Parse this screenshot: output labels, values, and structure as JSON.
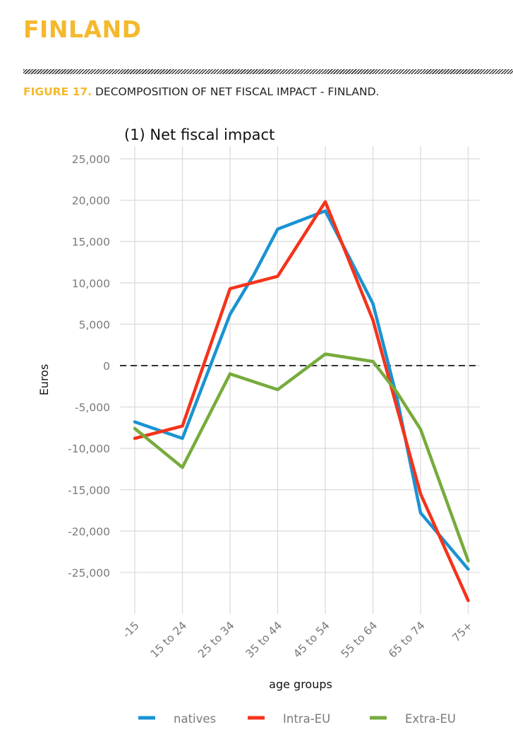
{
  "page": {
    "country_title": "FINLAND",
    "figure_label": "FIGURE 17.",
    "figure_caption": "DECOMPOSITION OF NET FISCAL IMPACT - FINLAND."
  },
  "colors": {
    "accent": "#f5b92e",
    "natives": "#1a93d3",
    "intra_eu": "#f5331b",
    "extra_eu": "#77ab3c"
  },
  "chart_data": {
    "type": "line",
    "title": "(1) Net fiscal impact",
    "xlabel": "age groups",
    "ylabel": "Euros",
    "categories": [
      "-15",
      "15 to 24",
      "25 to 34",
      "35 to 44",
      "45 to 54",
      "55 to 64",
      "65 to 74",
      "75+"
    ],
    "ylim": [
      -30000,
      25500
    ],
    "yticks": [
      25000,
      20000,
      15000,
      10000,
      5000,
      0,
      -5000,
      -10000,
      -15000,
      -20000,
      -25000
    ],
    "ytick_labels": [
      "25,000",
      "20,000",
      "15,000",
      "10,000",
      "5,000",
      "0",
      "-5,000",
      "-10,000",
      "-15,000",
      "-20,000",
      "-25,000"
    ],
    "grid": true,
    "zero_line": "dashed",
    "legend_position": "bottom",
    "series": [
      {
        "name": "natives",
        "color": "#1a93d3",
        "points": [
          [
            0,
            -6800
          ],
          [
            1,
            -8800
          ],
          [
            2,
            6200
          ],
          [
            2.5,
            11000
          ],
          [
            3,
            16500
          ],
          [
            4,
            18700
          ],
          [
            5,
            7500
          ],
          [
            5.5,
            -3800
          ],
          [
            6,
            -17800
          ],
          [
            7,
            -24600
          ]
        ]
      },
      {
        "name": "Intra-EU",
        "color": "#f5331b",
        "points": [
          [
            0,
            -8800
          ],
          [
            1,
            -7300
          ],
          [
            2,
            9300
          ],
          [
            3,
            10800
          ],
          [
            4,
            19800
          ],
          [
            5,
            5500
          ],
          [
            6,
            -15500
          ],
          [
            7,
            -28400
          ]
        ]
      },
      {
        "name": "Extra-EU",
        "color": "#77ab3c",
        "points": [
          [
            0,
            -7600
          ],
          [
            1,
            -12300
          ],
          [
            2,
            -1000
          ],
          [
            3,
            -2900
          ],
          [
            4,
            1400
          ],
          [
            5,
            500
          ],
          [
            5.5,
            -3200
          ],
          [
            6,
            -7700
          ],
          [
            7,
            -23600
          ]
        ]
      }
    ]
  }
}
